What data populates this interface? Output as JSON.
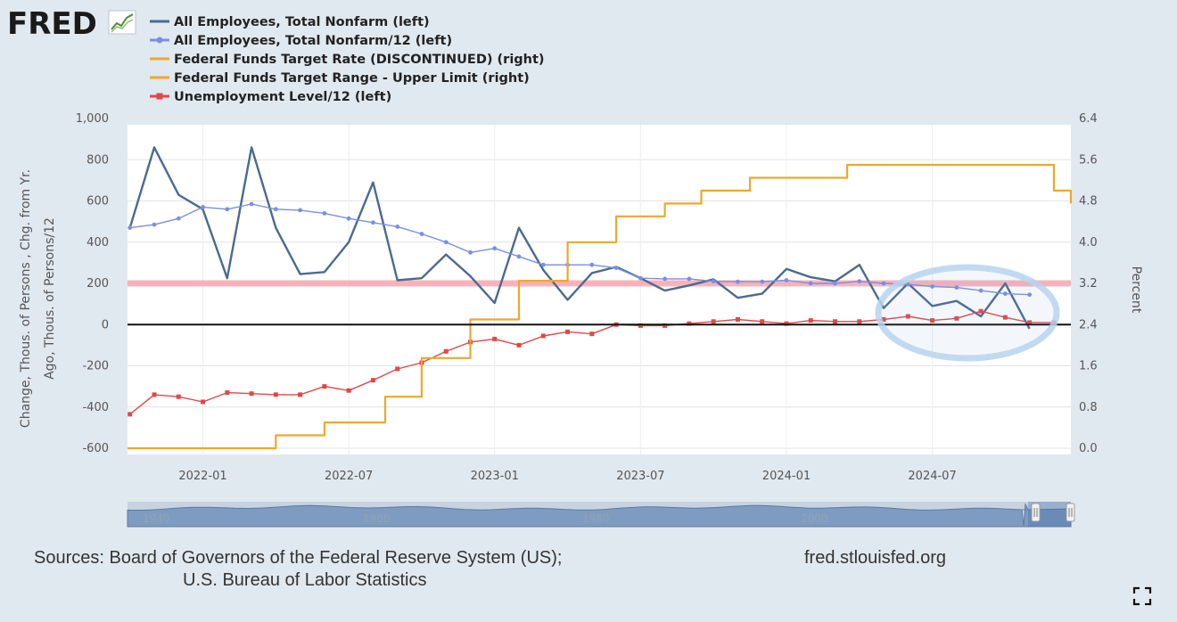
{
  "logo": {
    "text": "FRED"
  },
  "legend": [
    {
      "label": "All Employees, Total Nonfarm (left)",
      "color": "#4b6a8f",
      "marker": "none"
    },
    {
      "label": "All Employees, Total Nonfarm/12 (left)",
      "color": "#7b8fe0",
      "marker": "circle"
    },
    {
      "label": "Federal Funds Target Rate (DISCONTINUED) (right)",
      "color": "#eba82e",
      "marker": "none"
    },
    {
      "label": "Federal Funds Target Range - Upper Limit (right)",
      "color": "#eba82e",
      "marker": "none"
    },
    {
      "label": "Unemployment Level/12 (left)",
      "color": "#e04848",
      "marker": "square"
    }
  ],
  "chart_data": {
    "type": "line",
    "ylabel_left": "Change, Thous. of Persons , Chg. from Yr. Ago, Thous. of Persons/12",
    "ylabel_right": "Percent",
    "y_left_ticks": [
      "1,000",
      "800",
      "600",
      "400",
      "200",
      "0",
      "-200",
      "-400",
      "-600"
    ],
    "y_left_values": [
      1000,
      800,
      600,
      400,
      200,
      0,
      -200,
      -400,
      -600
    ],
    "y_right_ticks": [
      "6.4",
      "5.6",
      "4.8",
      "4.0",
      "3.2",
      "2.4",
      "1.6",
      "0.8",
      "0.0"
    ],
    "x_ticks": [
      "2022-01",
      "2022-07",
      "2023-01",
      "2023-07",
      "2024-01",
      "2024-07"
    ],
    "x_tick_months": [
      3,
      9,
      15,
      21,
      27,
      33
    ],
    "x_range_months": [
      -0.1,
      38.7
    ],
    "ylim_left": [
      -600,
      1000
    ],
    "ylim_right": [
      0.0,
      6.4
    ],
    "series": [
      {
        "name": "All Employees, Total Nonfarm (left)",
        "axis": "left",
        "color": "#4b6a8f",
        "month_start": 0,
        "values": [
          470,
          860,
          630,
          560,
          225,
          860,
          470,
          245,
          255,
          400,
          690,
          215,
          225,
          340,
          235,
          105,
          470,
          265,
          120,
          250,
          280,
          225,
          165,
          190,
          220,
          130,
          150,
          270,
          230,
          210,
          290,
          80,
          200,
          90,
          115,
          40,
          200,
          -20
        ]
      },
      {
        "name": "All Employees, Total Nonfarm/12 (left)",
        "axis": "left",
        "color": "#7b8fe0",
        "month_start": 0,
        "values": [
          470,
          485,
          515,
          570,
          560,
          585,
          560,
          555,
          540,
          515,
          495,
          475,
          440,
          400,
          350,
          370,
          330,
          290,
          290,
          290,
          275,
          225,
          222,
          222,
          210,
          208,
          208,
          215,
          200,
          200,
          210,
          200,
          195,
          185,
          180,
          165,
          150,
          145
        ]
      },
      {
        "name": "Unemployment Level/12 (left)",
        "axis": "left",
        "color": "#e04848",
        "month_start": 0,
        "values": [
          -435,
          -340,
          -350,
          -375,
          -330,
          -335,
          -340,
          -340,
          -300,
          -320,
          -270,
          -215,
          -185,
          -130,
          -85,
          -70,
          -100,
          -55,
          -35,
          -45,
          0,
          -5,
          -5,
          5,
          15,
          25,
          15,
          5,
          20,
          15,
          15,
          25,
          40,
          20,
          30,
          65,
          35,
          10,
          10
        ]
      },
      {
        "name": "Federal Funds Target Range - Upper Limit (right)",
        "axis": "right",
        "color": "#eba82e",
        "step": true,
        "points": [
          [
            -0.1,
            0.0
          ],
          [
            6,
            0.0
          ],
          [
            6,
            0.25
          ],
          [
            8,
            0.25
          ],
          [
            8,
            0.5
          ],
          [
            10.5,
            0.5
          ],
          [
            10.5,
            1.0
          ],
          [
            12,
            1.0
          ],
          [
            12,
            1.75
          ],
          [
            14,
            1.75
          ],
          [
            14,
            2.5
          ],
          [
            16,
            2.5
          ],
          [
            16,
            3.25
          ],
          [
            18,
            3.25
          ],
          [
            18,
            4.0
          ],
          [
            20,
            4.0
          ],
          [
            20,
            4.5
          ],
          [
            22,
            4.5
          ],
          [
            22,
            4.75
          ],
          [
            23.5,
            4.75
          ],
          [
            23.5,
            5.0
          ],
          [
            25.5,
            5.0
          ],
          [
            25.5,
            5.25
          ],
          [
            29.5,
            5.25
          ],
          [
            29.5,
            5.5
          ],
          [
            38,
            5.5
          ],
          [
            38,
            5.0
          ],
          [
            38.7,
            5.0
          ],
          [
            38.7,
            4.75
          ]
        ]
      }
    ],
    "annotations": [
      {
        "type": "horizontal-band",
        "axis": "right",
        "value": 3.2,
        "color": "#f4a7b0"
      },
      {
        "type": "zero-line",
        "axis": "left",
        "value": 0,
        "color": "#111111"
      },
      {
        "type": "ellipse-highlight",
        "color": "#b7d4f0"
      }
    ],
    "grid": true,
    "legend_position": "top-left"
  },
  "navigator": {
    "labels": [
      "1940",
      "1960",
      "1980",
      "2000"
    ]
  },
  "footer": {
    "sources_line1": "Sources: Board of Governors of the Federal Reserve System (US);",
    "sources_line2": "U.S. Bureau of Labor Statistics",
    "url": "fred.stlouisfed.org"
  },
  "icons": {
    "fullscreen": "fullscreen-icon"
  }
}
